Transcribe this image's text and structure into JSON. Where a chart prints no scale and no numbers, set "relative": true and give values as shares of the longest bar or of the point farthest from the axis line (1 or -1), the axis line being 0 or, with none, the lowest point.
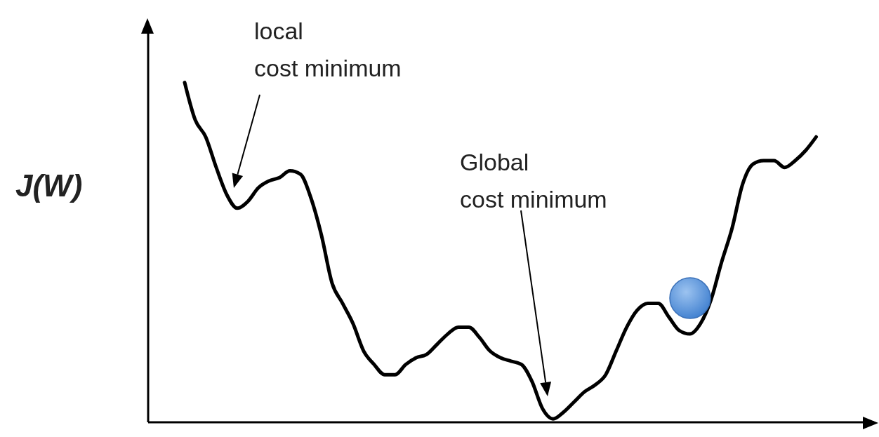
{
  "chart_data": {
    "type": "line",
    "relative": true,
    "ylabel": "J(W)",
    "categories": [
      null,
      null,
      null,
      null,
      null,
      null,
      null,
      null,
      null,
      null,
      null,
      null,
      null,
      null,
      null,
      null,
      null,
      null,
      null,
      null,
      null,
      null,
      null,
      null,
      null,
      null,
      null,
      null,
      null,
      null,
      null,
      null,
      null,
      null,
      null,
      null,
      null,
      null,
      null,
      null,
      null,
      null,
      null,
      null,
      null,
      null,
      null,
      null,
      null,
      null,
      null,
      null,
      null,
      null,
      null,
      null,
      null,
      null,
      null,
      null,
      null
    ],
    "series": [
      {
        "color": "#000000",
        "values": [
          1.0,
          0.89,
          0.84,
          0.75,
          0.67,
          0.63,
          0.65,
          0.69,
          0.71,
          0.72,
          0.74,
          0.73,
          0.66,
          0.55,
          0.41,
          0.35,
          0.29,
          0.21,
          0.17,
          0.14,
          0.14,
          0.17,
          0.19,
          0.2,
          0.23,
          0.26,
          0.28,
          0.28,
          0.25,
          0.21,
          0.19,
          0.18,
          0.17,
          0.12,
          0.04,
          0.01,
          0.03,
          0.06,
          0.09,
          0.11,
          0.14,
          0.21,
          0.28,
          0.33,
          0.35,
          0.35,
          0.31,
          0.27,
          0.26,
          0.29,
          0.36,
          0.47,
          0.57,
          0.7,
          0.76,
          0.77,
          0.77,
          0.75,
          0.77,
          0.8,
          0.84
        ]
      }
    ],
    "annotations": [
      "local\ncost minimum",
      "Global\ncost minimum"
    ],
    "grid": false,
    "legend": false,
    "marker": "none",
    "line_style": "solid"
  }
}
